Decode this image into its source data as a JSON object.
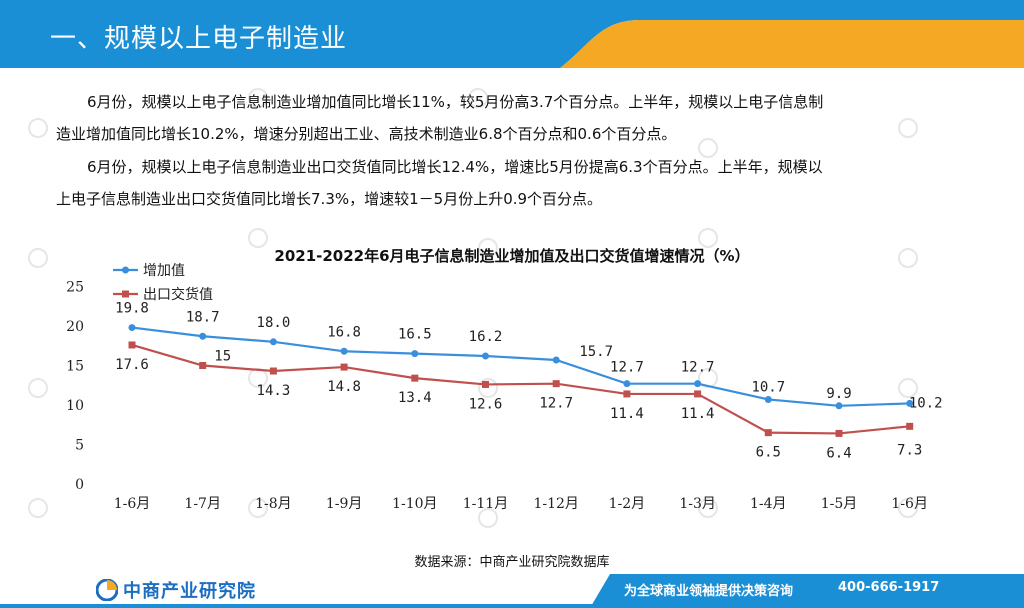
{
  "header": {
    "title": "一、规模以上电子制造业"
  },
  "paragraphs": [
    [
      "6月份，规模以上电子信息制造业增加值同比增长11%，较5月份高3.7个百分点。上半年，规模以上电子信息制",
      "造业增加值同比增长10.2%，增速分别超出工业、高技术制造业6.8个百分点和0.6个百分点。"
    ],
    [
      "6月份，规模以上电子信息制造业出口交货值同比增长12.4%，增速比5月份提高6.3个百分点。上半年，规模以",
      "上电子信息制造业出口交货值同比增长7.3%，增速较1－5月份上升0.9个百分点。"
    ]
  ],
  "chart_data": {
    "type": "line",
    "title": "2021-2022年6月电子信息制造业增加值及出口交货值增速情况（%）",
    "categories": [
      "1-6月",
      "1-7月",
      "1-8月",
      "1-9月",
      "1-10月",
      "1-11月",
      "1-12月",
      "1-2月",
      "1-3月",
      "1-4月",
      "1-5月",
      "1-6月"
    ],
    "series": [
      {
        "name": "增加值",
        "color": "#3a8fdc",
        "marker": "circle",
        "values": [
          19.8,
          18.7,
          18.0,
          16.8,
          16.5,
          16.2,
          15.7,
          12.7,
          12.7,
          10.7,
          9.9,
          10.2
        ],
        "labels": [
          "19.8",
          "18.7",
          "18.0",
          "16.8",
          "16.5",
          "16.2",
          "15.7",
          "12.7",
          "12.7",
          "10.7",
          "9.9",
          "10.2"
        ]
      },
      {
        "name": "出口交货值",
        "color": "#c0504d",
        "marker": "square",
        "values": [
          17.6,
          15.0,
          14.3,
          14.8,
          13.4,
          12.6,
          12.7,
          11.4,
          11.4,
          6.5,
          6.4,
          7.3
        ],
        "labels": [
          "17.6",
          "15",
          "14.3",
          "14.8",
          "13.4",
          "12.6",
          "12.7",
          "11.4",
          "11.4",
          "6.5",
          "6.4",
          "7.3"
        ]
      }
    ],
    "yticks": [
      "0",
      "5",
      "10",
      "15",
      "20",
      "25"
    ],
    "ylim": [
      0,
      25
    ],
    "grid": false,
    "legend_position": "top-left",
    "source": "数据来源：中商产业研究院数据库"
  },
  "footer": {
    "logo_text": "中商产业研究院",
    "slogan": "为全球商业领袖提供决策咨询",
    "phone": "400-666-1917"
  },
  "colors": {
    "header_blue": "#1b8fd6",
    "header_orange": "#f5a823",
    "footer_blue": "#1b8fd6"
  }
}
